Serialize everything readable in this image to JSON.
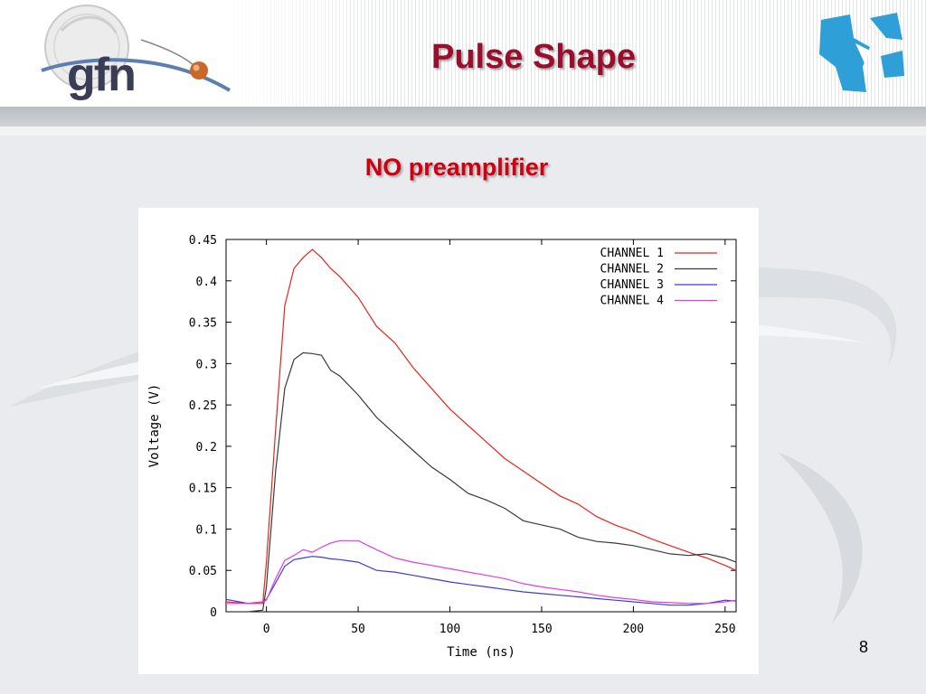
{
  "slide": {
    "title": "Pulse Shape",
    "subtitle": "NO preamplifier",
    "page_number": "8",
    "logo_text": "gfn"
  },
  "colors": {
    "title": "#9b0d2b",
    "subtitle": "#d10010",
    "logo_right": "#2f9fd8"
  },
  "chart_data": {
    "type": "line",
    "title": "",
    "xlabel": "Time (ns)",
    "ylabel": "Voltage (V)",
    "xlim": [
      -22,
      256
    ],
    "ylim": [
      0,
      0.45
    ],
    "xticks": [
      0,
      50,
      100,
      150,
      200,
      250
    ],
    "yticks": [
      0,
      0.05,
      0.1,
      0.15,
      0.2,
      0.25,
      0.3,
      0.35,
      0.4,
      0.45
    ],
    "ytick_labels": [
      "0",
      "0.05",
      "0.1",
      "0.15",
      "0.2",
      "0.25",
      "0.3",
      "0.35",
      "0.4",
      "0.45"
    ],
    "legend_position": "top-right",
    "grid": false,
    "x": [
      -22,
      -10,
      -2,
      0,
      5,
      10,
      15,
      20,
      25,
      30,
      35,
      40,
      50,
      60,
      70,
      80,
      90,
      100,
      110,
      120,
      130,
      140,
      150,
      160,
      170,
      180,
      190,
      200,
      210,
      220,
      230,
      240,
      250,
      256
    ],
    "series": [
      {
        "name": "CHANNEL 1",
        "color": "#e8241b",
        "values": [
          0.012,
          0.01,
          0.01,
          0.06,
          0.22,
          0.37,
          0.415,
          0.428,
          0.438,
          0.428,
          0.415,
          0.405,
          0.38,
          0.345,
          0.325,
          0.295,
          0.27,
          0.245,
          0.225,
          0.205,
          0.185,
          0.17,
          0.155,
          0.14,
          0.13,
          0.115,
          0.105,
          0.097,
          0.088,
          0.08,
          0.072,
          0.065,
          0.056,
          0.05
        ]
      },
      {
        "name": "CHANNEL 2",
        "color": "#3a3a3a",
        "values": [
          0.0,
          0.0,
          0.002,
          0.03,
          0.17,
          0.27,
          0.305,
          0.313,
          0.312,
          0.31,
          0.292,
          0.285,
          0.262,
          0.235,
          0.215,
          0.195,
          0.175,
          0.16,
          0.143,
          0.135,
          0.125,
          0.11,
          0.105,
          0.1,
          0.09,
          0.085,
          0.083,
          0.08,
          0.075,
          0.07,
          0.068,
          0.07,
          0.065,
          0.06
        ]
      },
      {
        "name": "CHANNEL 3",
        "color": "#3b3bdc",
        "values": [
          0.015,
          0.01,
          0.012,
          0.015,
          0.035,
          0.055,
          0.063,
          0.065,
          0.067,
          0.066,
          0.064,
          0.063,
          0.06,
          0.05,
          0.048,
          0.044,
          0.04,
          0.036,
          0.033,
          0.03,
          0.027,
          0.024,
          0.022,
          0.02,
          0.018,
          0.016,
          0.014,
          0.012,
          0.01,
          0.008,
          0.008,
          0.01,
          0.014,
          0.013
        ]
      },
      {
        "name": "CHANNEL 4",
        "color": "#e23be2",
        "values": [
          0.01,
          0.01,
          0.012,
          0.014,
          0.04,
          0.062,
          0.068,
          0.075,
          0.072,
          0.078,
          0.083,
          0.086,
          0.086,
          0.075,
          0.065,
          0.06,
          0.056,
          0.052,
          0.048,
          0.044,
          0.04,
          0.034,
          0.03,
          0.027,
          0.024,
          0.02,
          0.017,
          0.015,
          0.012,
          0.011,
          0.01,
          0.01,
          0.012,
          0.014
        ]
      }
    ]
  }
}
